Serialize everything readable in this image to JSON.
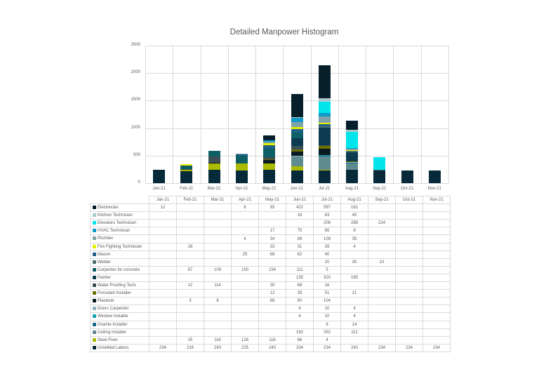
{
  "chart_data": {
    "type": "bar",
    "stacked": true,
    "title": "Detailed Manpower Histogram",
    "xlabel": "",
    "ylabel": "",
    "ylim": [
      0,
      2500
    ],
    "yticks": [
      0,
      500,
      1000,
      1500,
      2000,
      2500
    ],
    "grid": true,
    "legend_position": "data-table",
    "categories": [
      "Jan-21",
      "Feb-21",
      "Mar-21",
      "Apr-21",
      "May-21",
      "Jun-21",
      "Jul-21",
      "Aug-21",
      "Sep-21",
      "Oct-21",
      "Nov-21"
    ],
    "series": [
      {
        "name": "Unskilled Labors",
        "color": "#062a3a",
        "values": [
          234,
          216,
          243,
          225,
          243,
          234,
          234,
          243,
          234,
          234,
          234
        ]
      },
      {
        "name": "Steel Fixer",
        "color": "#aabb00",
        "values": [
          null,
          25,
          116,
          128,
          116,
          68,
          4,
          null,
          null,
          null,
          null
        ]
      },
      {
        "name": "Ceiling Installer",
        "color": "#5f8a8f",
        "values": [
          null,
          null,
          null,
          null,
          null,
          182,
          252,
          112,
          null,
          null,
          null
        ]
      },
      {
        "name": "Granite Installer",
        "color": "#1a6b8a",
        "values": [
          null,
          null,
          null,
          null,
          null,
          null,
          6,
          14,
          null,
          null,
          null
        ]
      },
      {
        "name": "Window Installer",
        "color": "#1aa3a8",
        "values": [
          null,
          null,
          null,
          null,
          null,
          4,
          10,
          4,
          null,
          null,
          null
        ]
      },
      {
        "name": "Doors Carpenter",
        "color": "#8fb5ba",
        "values": [
          null,
          null,
          null,
          null,
          null,
          4,
          10,
          4,
          null,
          null,
          null
        ]
      },
      {
        "name": "Plasterer",
        "color": "#0a1a22",
        "values": [
          null,
          3,
          6,
          null,
          68,
          80,
          104,
          null,
          null,
          null,
          null
        ]
      },
      {
        "name": "Porcelain Installer",
        "color": "#6b7000",
        "values": [
          null,
          null,
          null,
          null,
          12,
          39,
          51,
          21,
          null,
          null,
          null
        ]
      },
      {
        "name": "Water Proofing Tech.",
        "color": "#3b4f55",
        "values": [
          null,
          12,
          114,
          null,
          30,
          68,
          16,
          null,
          null,
          null,
          null
        ]
      },
      {
        "name": "Painter",
        "color": "#0d3c52",
        "values": [
          null,
          null,
          null,
          null,
          null,
          135,
          320,
          165,
          null,
          null,
          null
        ]
      },
      {
        "name": "Carpenter for concrete",
        "color": "#0e5e66",
        "values": [
          null,
          67,
          109,
          150,
          154,
          111,
          5,
          null,
          null,
          null,
          null
        ]
      },
      {
        "name": "Welder",
        "color": "#4d6d70",
        "values": [
          null,
          null,
          null,
          null,
          null,
          null,
          20,
          30,
          10,
          null,
          null
        ]
      },
      {
        "name": "Mason",
        "color": "#1d5f86",
        "values": [
          null,
          null,
          null,
          25,
          68,
          62,
          40,
          null,
          null,
          null,
          null
        ]
      },
      {
        "name": "Fire Fighting Technician",
        "color": "#e6f000",
        "values": [
          null,
          18,
          null,
          null,
          33,
          31,
          28,
          4,
          null,
          null,
          null
        ]
      },
      {
        "name": "Plumber",
        "color": "#7fa3a8",
        "values": [
          null,
          null,
          null,
          4,
          34,
          89,
          109,
          35,
          null,
          null,
          null
        ]
      },
      {
        "name": "HVAC Technician",
        "color": "#0f9ac9",
        "values": [
          null,
          null,
          null,
          null,
          17,
          75,
          65,
          8,
          null,
          null,
          null
        ]
      },
      {
        "name": "Elevators Technician",
        "color": "#00e5ec",
        "values": [
          null,
          null,
          null,
          null,
          null,
          null,
          208,
          288,
          224,
          null,
          null
        ]
      },
      {
        "name": "Kitchen Technician",
        "color": "#a9c9cc",
        "values": [
          null,
          null,
          null,
          null,
          null,
          18,
          63,
          45,
          null,
          null,
          null
        ]
      },
      {
        "name": "Electrecian",
        "color": "#071f2b",
        "values": [
          12,
          null,
          null,
          6,
          93,
          422,
          597,
          161,
          null,
          null,
          null
        ]
      }
    ]
  },
  "table": {
    "header": [
      "Jan-21",
      "Feb-21",
      "Mar-21",
      "Apr-21",
      "May-21",
      "Jun-21",
      "Jul-21",
      "Aug-21",
      "Sep-21",
      "Oct-21",
      "Nov-21"
    ],
    "rows": [
      {
        "label": "Electrecian",
        "color": "#071f2b",
        "cells": [
          "12",
          "",
          "",
          "6",
          "93",
          "422",
          "597",
          "161",
          "",
          "",
          ""
        ]
      },
      {
        "label": "Kitchen Technician",
        "color": "#a9c9cc",
        "cells": [
          "",
          "",
          "",
          "",
          "",
          "18",
          "63",
          "45",
          "",
          "",
          ""
        ]
      },
      {
        "label": "Elevators Technician",
        "color": "#00e5ec",
        "cells": [
          "",
          "",
          "",
          "",
          "",
          "",
          "208",
          "288",
          "224",
          "",
          ""
        ]
      },
      {
        "label": "HVAC Technician",
        "color": "#0f9ac9",
        "cells": [
          "",
          "",
          "",
          "",
          "17",
          "75",
          "65",
          "8",
          "",
          "",
          ""
        ]
      },
      {
        "label": "Plumber",
        "color": "#7fa3a8",
        "cells": [
          "",
          "",
          "",
          "4",
          "34",
          "89",
          "109",
          "35",
          "",
          "",
          ""
        ]
      },
      {
        "label": "Fire Fighting Technician",
        "color": "#e6f000",
        "cells": [
          "",
          "18",
          "",
          "",
          "33",
          "31",
          "28",
          "4",
          "",
          "",
          ""
        ]
      },
      {
        "label": "Mason",
        "color": "#1d5f86",
        "cells": [
          "",
          "",
          "",
          "25",
          "68",
          "62",
          "40",
          "",
          "",
          "",
          ""
        ]
      },
      {
        "label": "Welder",
        "color": "#4d6d70",
        "cells": [
          "",
          "",
          "",
          "",
          "",
          "",
          "20",
          "30",
          "10",
          "",
          ""
        ]
      },
      {
        "label": "Carpenter for concrete",
        "color": "#0e5e66",
        "cells": [
          "",
          "67",
          "109",
          "150",
          "154",
          "111",
          "5",
          "",
          "",
          "",
          ""
        ]
      },
      {
        "label": "Painter",
        "color": "#0d3c52",
        "cells": [
          "",
          "",
          "",
          "",
          "",
          "135",
          "320",
          "165",
          "",
          "",
          ""
        ]
      },
      {
        "label": "Water Proofing Tech.",
        "color": "#3b4f55",
        "cells": [
          "",
          "12",
          "114",
          "",
          "30",
          "68",
          "16",
          "",
          "",
          "",
          ""
        ]
      },
      {
        "label": "Porcelain Installer",
        "color": "#6b7000",
        "cells": [
          "",
          "",
          "",
          "",
          "12",
          "39",
          "51",
          "21",
          "",
          "",
          ""
        ]
      },
      {
        "label": "Plasterer",
        "color": "#0a1a22",
        "cells": [
          "",
          "3",
          "6",
          "",
          "68",
          "80",
          "104",
          "",
          "",
          "",
          ""
        ]
      },
      {
        "label": "Doors Carpenter",
        "color": "#8fb5ba",
        "cells": [
          "",
          "",
          "",
          "",
          "",
          "4",
          "10",
          "4",
          "",
          "",
          ""
        ]
      },
      {
        "label": "Window Installer",
        "color": "#1aa3a8",
        "cells": [
          "",
          "",
          "",
          "",
          "",
          "4",
          "10",
          "4",
          "",
          "",
          ""
        ]
      },
      {
        "label": "Granite Installer",
        "color": "#1a6b8a",
        "cells": [
          "",
          "",
          "",
          "",
          "",
          "",
          "6",
          "14",
          "",
          "",
          ""
        ]
      },
      {
        "label": "Ceiling Installer",
        "color": "#5f8a8f",
        "cells": [
          "",
          "",
          "",
          "",
          "",
          "182",
          "252",
          "112",
          "",
          "",
          ""
        ]
      },
      {
        "label": "Steel Fixer",
        "color": "#aabb00",
        "cells": [
          "",
          "25",
          "116",
          "128",
          "116",
          "68",
          "4",
          "",
          "",
          "",
          ""
        ]
      },
      {
        "label": "Unskilled Labors",
        "color": "#062a3a",
        "cells": [
          "234",
          "216",
          "243",
          "225",
          "243",
          "234",
          "234",
          "243",
          "234",
          "234",
          "234"
        ]
      }
    ]
  }
}
